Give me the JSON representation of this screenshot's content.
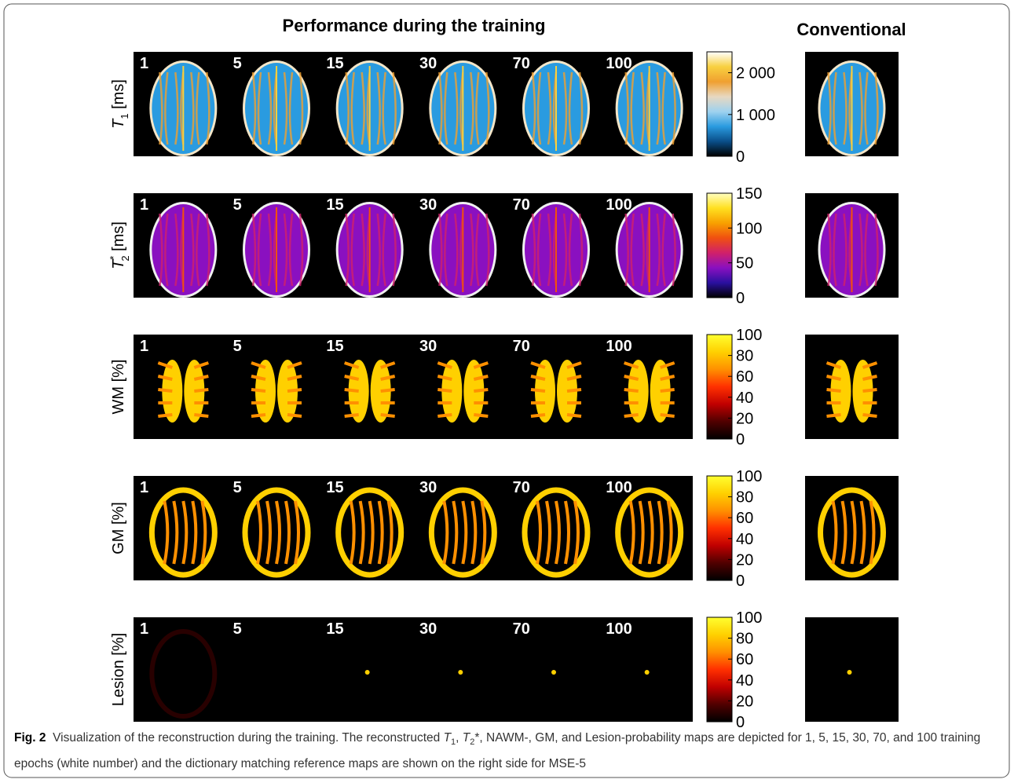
{
  "figure": {
    "title": "Performance during the training",
    "reference_title": "Conventional",
    "epochs": [
      "1",
      "5",
      "15",
      "30",
      "70",
      "100"
    ],
    "rows": [
      {
        "label": {
          "symbol": "T",
          "sub": "1",
          "unit": " [ms]"
        },
        "colorbar": {
          "range": [
            0,
            2500
          ],
          "colors": [
            "#000000",
            "#0a4f8a",
            "#2a9be0",
            "#9fd2ef",
            "#e8d8c0",
            "#f0a030",
            "#f8d040",
            "#ffffff"
          ],
          "ticks": [
            {
              "value": 0,
              "label": "0"
            },
            {
              "value": 1000,
              "label": "1 000"
            },
            {
              "value": 2000,
              "label": "2 000"
            }
          ]
        }
      },
      {
        "label": {
          "symbol": "T",
          "sub": "2",
          "sup": "*",
          "unit": " [ms]"
        },
        "colorbar": {
          "range": [
            0,
            150
          ],
          "colors": [
            "#000000",
            "#2a10a0",
            "#8a10c0",
            "#d0206a",
            "#f05010",
            "#f8a000",
            "#ffe020",
            "#ffffc0"
          ],
          "ticks": [
            0,
            50,
            100,
            150
          ]
        }
      },
      {
        "label": {
          "text": "WM [%]"
        },
        "colorbar": {
          "range": [
            0,
            100
          ],
          "colors": [
            "#000000",
            "#500000",
            "#c00000",
            "#ff3000",
            "#ff9000",
            "#ffd000",
            "#ffff30"
          ],
          "ticks": [
            0,
            20,
            40,
            60,
            80,
            100
          ]
        }
      },
      {
        "label": {
          "text": "GM [%]"
        },
        "colorbar": {
          "range": [
            0,
            100
          ],
          "colors": [
            "#000000",
            "#500000",
            "#c00000",
            "#ff3000",
            "#ff9000",
            "#ffd000",
            "#ffff30"
          ],
          "ticks": [
            0,
            20,
            40,
            60,
            80,
            100
          ]
        }
      },
      {
        "label": {
          "text": "Lesion [%]"
        },
        "colorbar": {
          "range": [
            0,
            100
          ],
          "colors": [
            "#000000",
            "#500000",
            "#c00000",
            "#ff3000",
            "#ff9000",
            "#ffd000",
            "#ffff30"
          ],
          "ticks": [
            0,
            20,
            40,
            60,
            80,
            100
          ]
        }
      }
    ],
    "caption": {
      "label": "Fig. 2",
      "segments": [
        {
          "text": "Visualization of the reconstruction during the training. The reconstructed "
        },
        {
          "text": "T",
          "italic": true
        },
        {
          "text": "1",
          "sub": true
        },
        {
          "text": ", "
        },
        {
          "text": "T",
          "italic": true
        },
        {
          "text": "2",
          "sub": true
        },
        {
          "text": "*, NAWM-, GM, and Lesion-probability maps are depicted for 1, 5, 15, 30, 70, and 100 training epochs (white number) and the dictionary matching reference maps are shown on the right side for MSE-5"
        }
      ]
    }
  }
}
